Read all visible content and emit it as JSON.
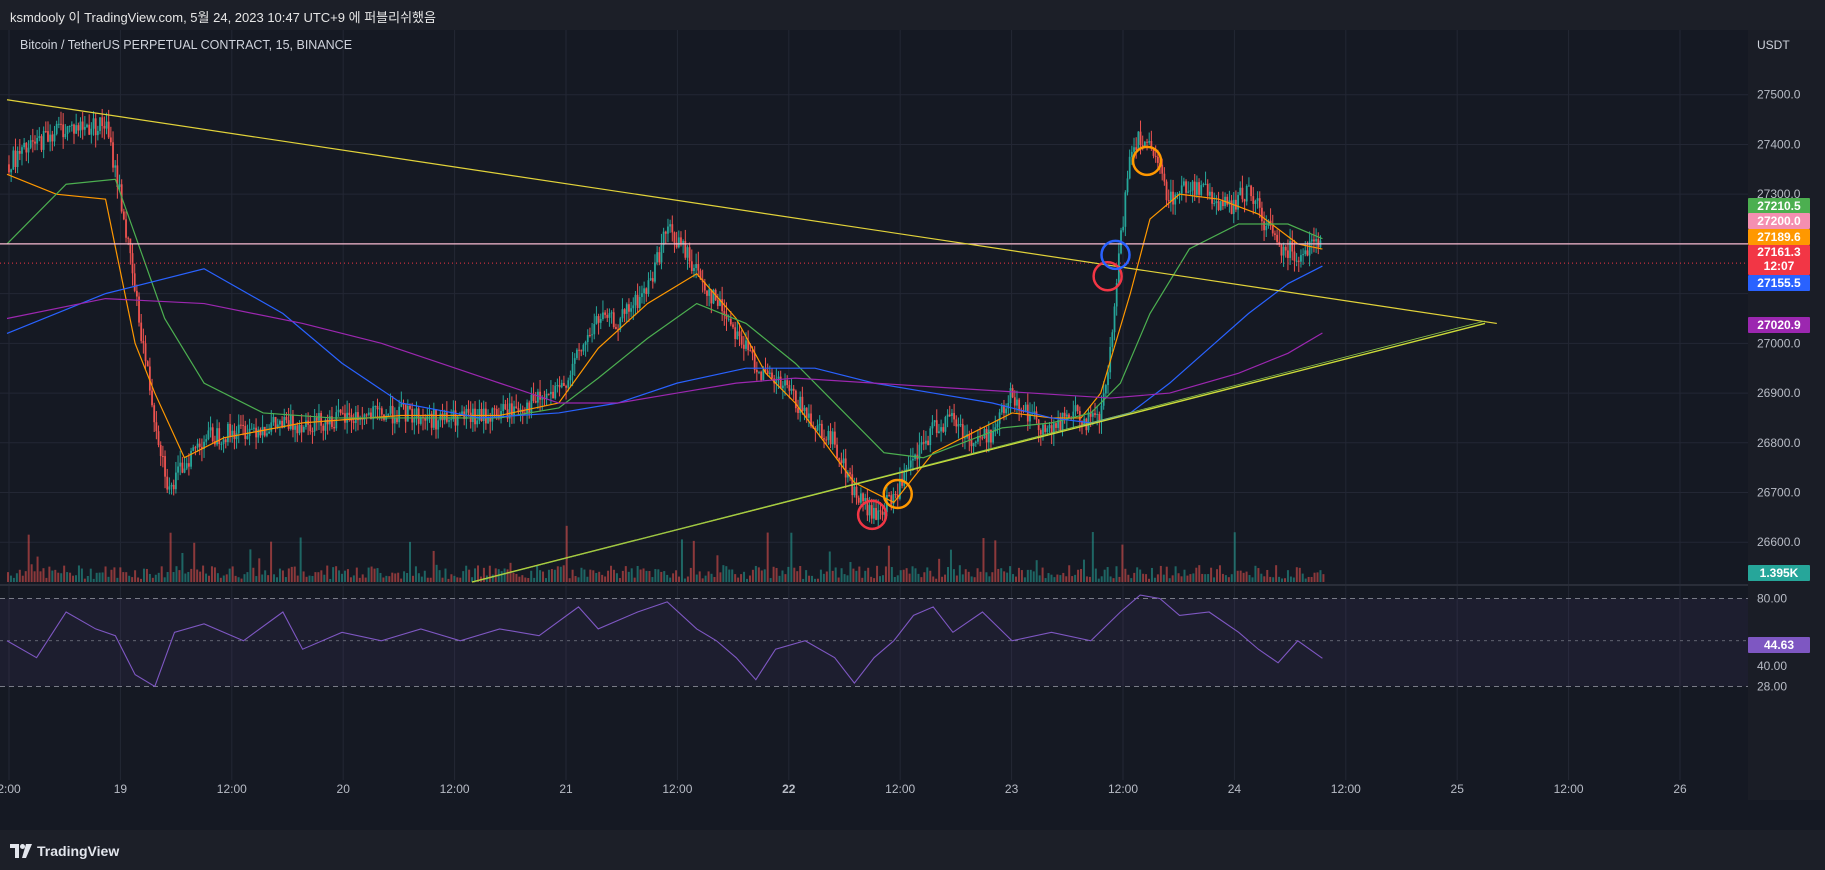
{
  "header": {
    "text": "ksmdooly 이 TradingView.com, 5월 24, 2023 10:47 UTC+9 에 퍼블리쉬했음"
  },
  "chart": {
    "symbol": "Bitcoin / TetherUS PERPETUAL CONTRACT, 15, BINANCE",
    "currency": "USDT"
  },
  "price_tags": [
    {
      "value": "27210.5",
      "color": "#4caf50"
    },
    {
      "value": "27200.0",
      "color": "#f48fb1"
    },
    {
      "value": "27189.6",
      "color": "#ff9800"
    },
    {
      "value": "27161.3",
      "sub": "12:07",
      "color": "#f23645"
    },
    {
      "value": "27155.5",
      "color": "#2962ff"
    },
    {
      "value": "27020.9",
      "color": "#9c27b0"
    },
    {
      "value": "1.395K",
      "color": "#26a69a"
    },
    {
      "value": "44.63",
      "color": "#7e57c2"
    }
  ],
  "footer": {
    "brand": "TradingView"
  },
  "chart_data": [
    {
      "type": "candlestick",
      "title": "Bitcoin / TetherUS PERPETUAL CONTRACT, 15, BINANCE",
      "y_unit": "USDT",
      "yticks": [
        "27500.0",
        "27400.0",
        "27300.0",
        "27000.0",
        "26900.0",
        "26800.0",
        "26700.0",
        "26600.0"
      ],
      "ylim": [
        26520,
        27590
      ],
      "xticks": [
        "2:00",
        "19",
        "12:00",
        "20",
        "12:00",
        "21",
        "12:00",
        "22",
        "12:00",
        "23",
        "12:00",
        "24",
        "12:00",
        "25",
        "12:00",
        "26"
      ],
      "price_path": [
        [
          0,
          27360
        ],
        [
          50,
          27430
        ],
        [
          100,
          27440
        ],
        [
          115,
          27300
        ],
        [
          130,
          27100
        ],
        [
          150,
          26850
        ],
        [
          165,
          26700
        ],
        [
          180,
          26760
        ],
        [
          200,
          26810
        ],
        [
          250,
          26830
        ],
        [
          300,
          26840
        ],
        [
          350,
          26850
        ],
        [
          400,
          26860
        ],
        [
          440,
          26845
        ],
        [
          480,
          26850
        ],
        [
          520,
          26870
        ],
        [
          560,
          26900
        ],
        [
          600,
          27050
        ],
        [
          620,
          27040
        ],
        [
          650,
          27110
        ],
        [
          670,
          27230
        ],
        [
          690,
          27180
        ],
        [
          710,
          27110
        ],
        [
          730,
          27060
        ],
        [
          750,
          26990
        ],
        [
          770,
          26930
        ],
        [
          790,
          26910
        ],
        [
          810,
          26860
        ],
        [
          840,
          26800
        ],
        [
          860,
          26700
        ],
        [
          880,
          26650
        ],
        [
          900,
          26690
        ],
        [
          920,
          26760
        ],
        [
          940,
          26830
        ],
        [
          960,
          26850
        ],
        [
          980,
          26800
        ],
        [
          1000,
          26820
        ],
        [
          1020,
          26900
        ],
        [
          1040,
          26850
        ],
        [
          1060,
          26820
        ],
        [
          1080,
          26860
        ],
        [
          1100,
          26840
        ],
        [
          1110,
          26850
        ],
        [
          1120,
          26980
        ],
        [
          1130,
          27200
        ],
        [
          1140,
          27390
        ],
        [
          1150,
          27420
        ],
        [
          1165,
          27370
        ],
        [
          1180,
          27290
        ],
        [
          1200,
          27320
        ],
        [
          1220,
          27300
        ],
        [
          1240,
          27270
        ],
        [
          1260,
          27310
        ],
        [
          1275,
          27250
        ],
        [
          1290,
          27200
        ],
        [
          1310,
          27180
        ],
        [
          1330,
          27210
        ],
        [
          1335,
          27175
        ]
      ],
      "series": [
        {
          "name": "",
          "color": "#ff9800",
          "values": [
            [
              0,
              27340
            ],
            [
              50,
              27300
            ],
            [
              100,
              27290
            ],
            [
              130,
              27000
            ],
            [
              150,
              26900
            ],
            [
              180,
              26770
            ],
            [
              220,
              26810
            ],
            [
              300,
              26840
            ],
            [
              400,
              26855
            ],
            [
              500,
              26855
            ],
            [
              560,
              26880
            ],
            [
              600,
              26990
            ],
            [
              650,
              27080
            ],
            [
              700,
              27140
            ],
            [
              740,
              27050
            ],
            [
              770,
              26940
            ],
            [
              800,
              26880
            ],
            [
              830,
              26800
            ],
            [
              860,
              26720
            ],
            [
              900,
              26680
            ],
            [
              940,
              26780
            ],
            [
              980,
              26820
            ],
            [
              1020,
              26860
            ],
            [
              1060,
              26850
            ],
            [
              1090,
              26850
            ],
            [
              1110,
              26900
            ],
            [
              1140,
              27100
            ],
            [
              1160,
              27250
            ],
            [
              1190,
              27300
            ],
            [
              1230,
              27290
            ],
            [
              1270,
              27260
            ],
            [
              1310,
              27200
            ],
            [
              1335,
              27189.6
            ]
          ]
        },
        {
          "name": "",
          "color": "#4caf50",
          "values": [
            [
              0,
              27200
            ],
            [
              60,
              27320
            ],
            [
              110,
              27330
            ],
            [
              160,
              27050
            ],
            [
              200,
              26920
            ],
            [
              260,
              26860
            ],
            [
              330,
              26850
            ],
            [
              420,
              26850
            ],
            [
              500,
              26850
            ],
            [
              560,
              26870
            ],
            [
              600,
              26930
            ],
            [
              650,
              27010
            ],
            [
              700,
              27080
            ],
            [
              750,
              27040
            ],
            [
              800,
              26960
            ],
            [
              850,
              26860
            ],
            [
              890,
              26780
            ],
            [
              930,
              26770
            ],
            [
              970,
              26800
            ],
            [
              1010,
              26830
            ],
            [
              1060,
              26840
            ],
            [
              1100,
              26860
            ],
            [
              1130,
              26920
            ],
            [
              1160,
              27060
            ],
            [
              1200,
              27190
            ],
            [
              1250,
              27240
            ],
            [
              1300,
              27240
            ],
            [
              1335,
              27210.5
            ]
          ]
        },
        {
          "name": "",
          "color": "#2962ff",
          "values": [
            [
              0,
              27020
            ],
            [
              100,
              27100
            ],
            [
              200,
              27150
            ],
            [
              280,
              27060
            ],
            [
              340,
              26960
            ],
            [
              400,
              26880
            ],
            [
              480,
              26850
            ],
            [
              560,
              26860
            ],
            [
              620,
              26880
            ],
            [
              680,
              26920
            ],
            [
              750,
              26950
            ],
            [
              820,
              26950
            ],
            [
              880,
              26920
            ],
            [
              940,
              26900
            ],
            [
              1000,
              26880
            ],
            [
              1060,
              26850
            ],
            [
              1100,
              26840
            ],
            [
              1140,
              26860
            ],
            [
              1180,
              26920
            ],
            [
              1220,
              26990
            ],
            [
              1260,
              27060
            ],
            [
              1300,
              27120
            ],
            [
              1335,
              27155.5
            ]
          ]
        },
        {
          "name": "",
          "color": "#9c27b0",
          "values": [
            [
              0,
              27050
            ],
            [
              100,
              27090
            ],
            [
              200,
              27080
            ],
            [
              300,
              27040
            ],
            [
              380,
              27000
            ],
            [
              440,
              26960
            ],
            [
              500,
              26920
            ],
            [
              560,
              26880
            ],
            [
              620,
              26880
            ],
            [
              680,
              26900
            ],
            [
              740,
              26920
            ],
            [
              800,
              26930
            ],
            [
              880,
              26920
            ],
            [
              960,
              26910
            ],
            [
              1040,
              26900
            ],
            [
              1120,
              26890
            ],
            [
              1180,
              26900
            ],
            [
              1250,
              26940
            ],
            [
              1300,
              26980
            ],
            [
              1335,
              27020.9
            ]
          ]
        }
      ],
      "rsi": {
        "yticks": [
          "80.00",
          "40.00",
          "28.00"
        ],
        "values": [
          [
            0,
            55
          ],
          [
            30,
            45
          ],
          [
            60,
            72
          ],
          [
            90,
            62
          ],
          [
            110,
            58
          ],
          [
            130,
            35
          ],
          [
            150,
            28
          ],
          [
            170,
            60
          ],
          [
            200,
            65
          ],
          [
            240,
            55
          ],
          [
            280,
            72
          ],
          [
            300,
            50
          ],
          [
            340,
            60
          ],
          [
            380,
            55
          ],
          [
            420,
            62
          ],
          [
            460,
            55
          ],
          [
            500,
            62
          ],
          [
            540,
            58
          ],
          [
            580,
            75
          ],
          [
            600,
            62
          ],
          [
            640,
            72
          ],
          [
            670,
            78
          ],
          [
            700,
            62
          ],
          [
            720,
            55
          ],
          [
            740,
            45
          ],
          [
            760,
            32
          ],
          [
            780,
            50
          ],
          [
            810,
            55
          ],
          [
            840,
            45
          ],
          [
            860,
            30
          ],
          [
            880,
            45
          ],
          [
            900,
            55
          ],
          [
            920,
            70
          ],
          [
            940,
            75
          ],
          [
            960,
            60
          ],
          [
            990,
            72
          ],
          [
            1020,
            55
          ],
          [
            1060,
            60
          ],
          [
            1100,
            55
          ],
          [
            1130,
            72
          ],
          [
            1150,
            82
          ],
          [
            1170,
            80
          ],
          [
            1190,
            70
          ],
          [
            1220,
            72
          ],
          [
            1250,
            60
          ],
          [
            1270,
            50
          ],
          [
            1290,
            42
          ],
          [
            1310,
            55
          ],
          [
            1335,
            44.63
          ]
        ]
      }
    }
  ]
}
